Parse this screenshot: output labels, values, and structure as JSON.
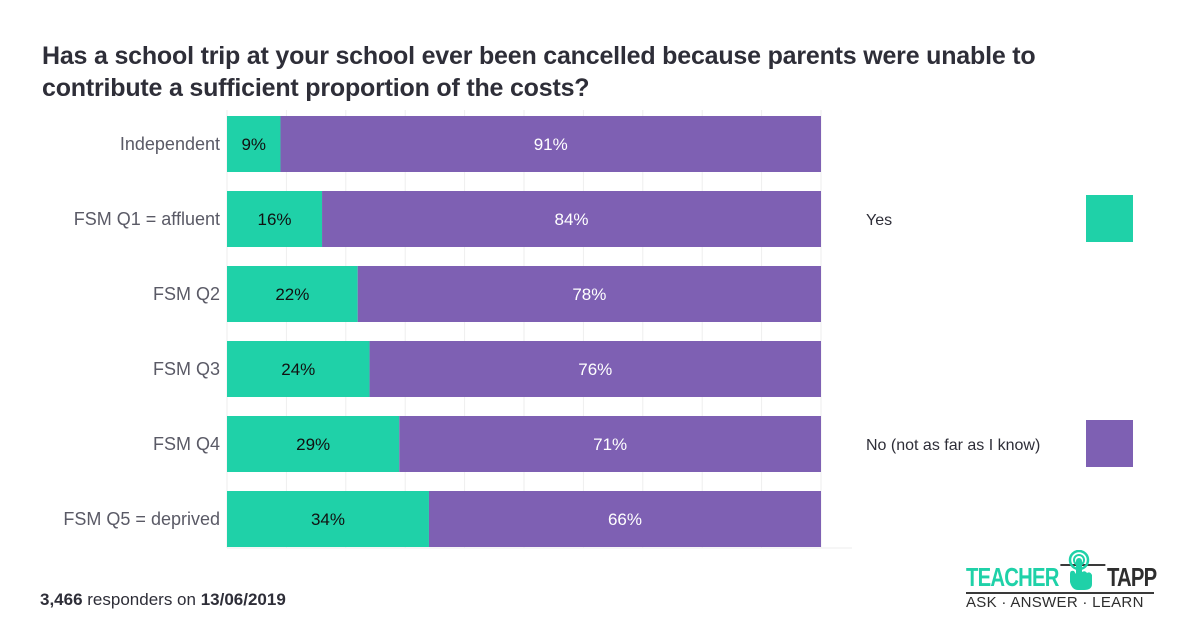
{
  "chart_data": {
    "type": "bar",
    "orientation": "horizontal",
    "stacked": true,
    "title": "Has a school trip at your school ever been cancelled because parents were unable to contribute a sufficient proportion of the costs?",
    "categories": [
      "Independent",
      "FSM Q1 = affluent",
      "FSM Q2",
      "FSM Q3",
      "FSM Q4",
      "FSM Q5 = deprived"
    ],
    "series": [
      {
        "name": "Yes",
        "color": "#1fd1a8",
        "values": [
          9,
          16,
          22,
          24,
          29,
          34
        ],
        "labels": [
          "9%",
          "16%",
          "22%",
          "24%",
          "29%",
          "34%"
        ]
      },
      {
        "name": "No (not as far as I know)",
        "color": "#7e60b3",
        "values": [
          91,
          84,
          78,
          76,
          71,
          66
        ],
        "labels": [
          "91%",
          "84%",
          "78%",
          "76%",
          "71%",
          "66%"
        ]
      }
    ],
    "xlim": [
      0,
      100
    ],
    "xlabel": "",
    "ylabel": "",
    "grid": true,
    "legend_position": "right"
  },
  "footer": {
    "count": "3,466",
    "middle_text": " responders on ",
    "date": "13/06/2019"
  },
  "logo": {
    "word1": "TEACHER",
    "word2": "TAPP",
    "tagline": "ASK · ANSWER · LEARN",
    "accent_color": "#1fd1a8"
  }
}
